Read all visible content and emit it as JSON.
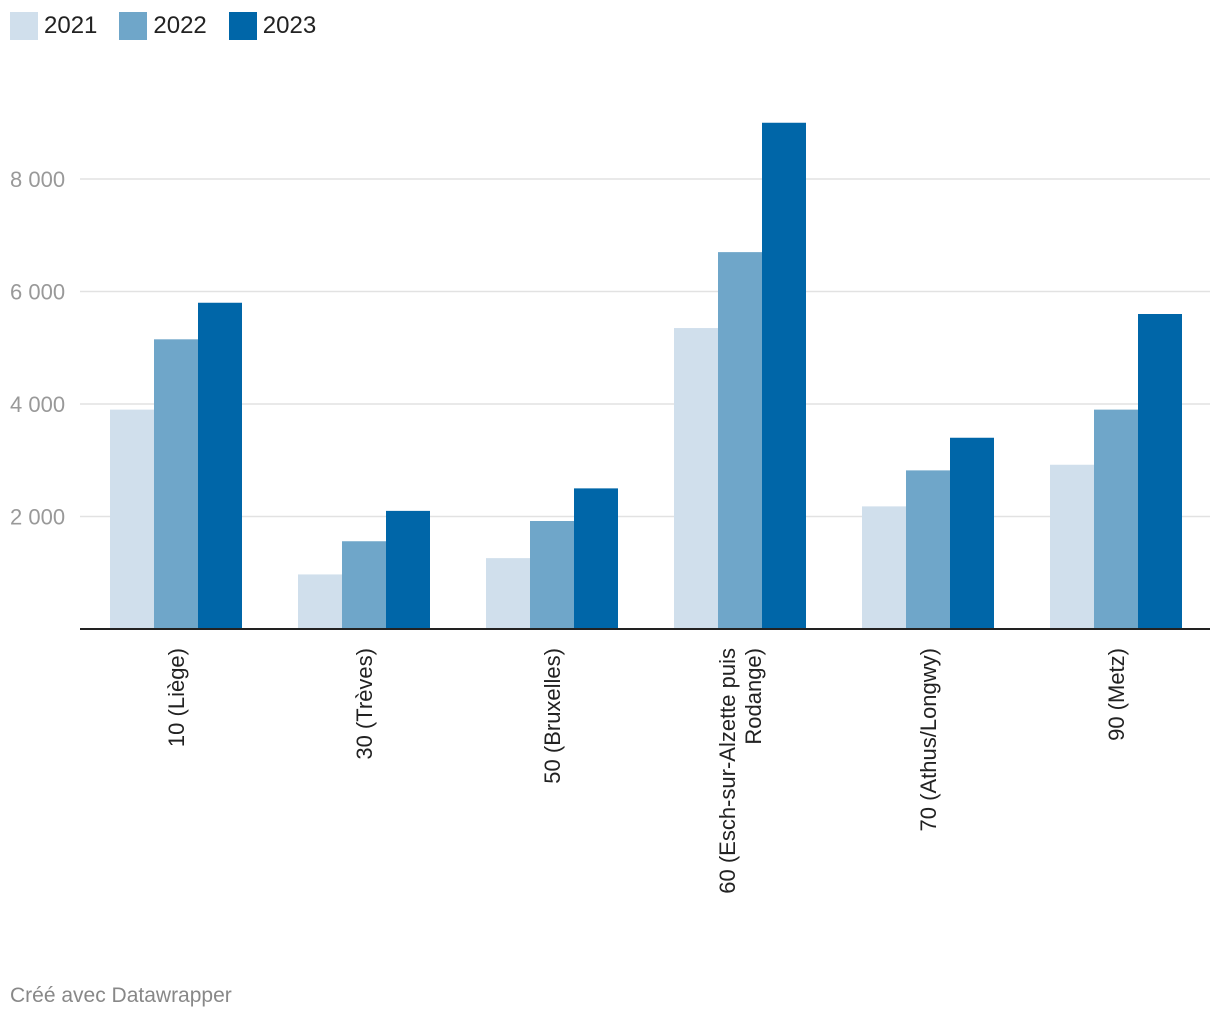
{
  "chart_data": {
    "type": "bar",
    "title": "",
    "xlabel": "",
    "ylabel": "",
    "ylim": [
      0,
      9000
    ],
    "yticks": [
      2000,
      4000,
      6000,
      8000
    ],
    "ytick_labels": [
      "2 000",
      "4 000",
      "6 000",
      "8 000"
    ],
    "categories": [
      [
        "10 (Liège)"
      ],
      [
        "30 (Trèves)"
      ],
      [
        "50 (Bruxelles)"
      ],
      [
        "60 (Esch-sur-Alzette puis",
        "Rodange)"
      ],
      [
        "70 (Athus/Longwy)"
      ],
      [
        "90 (Metz)"
      ]
    ],
    "series": [
      {
        "name": "2021",
        "color": "#d0dfec",
        "values": [
          3900,
          970,
          1260,
          5350,
          2180,
          2920
        ]
      },
      {
        "name": "2022",
        "color": "#6fa6c9",
        "values": [
          5150,
          1560,
          1920,
          6700,
          2820,
          3900
        ]
      },
      {
        "name": "2023",
        "color": "#0066a8",
        "values": [
          5800,
          2100,
          2500,
          9000,
          3400,
          5600
        ]
      }
    ],
    "grid": true,
    "legend_position": "top-left"
  },
  "footer": {
    "credit": "Créé avec Datawrapper"
  }
}
